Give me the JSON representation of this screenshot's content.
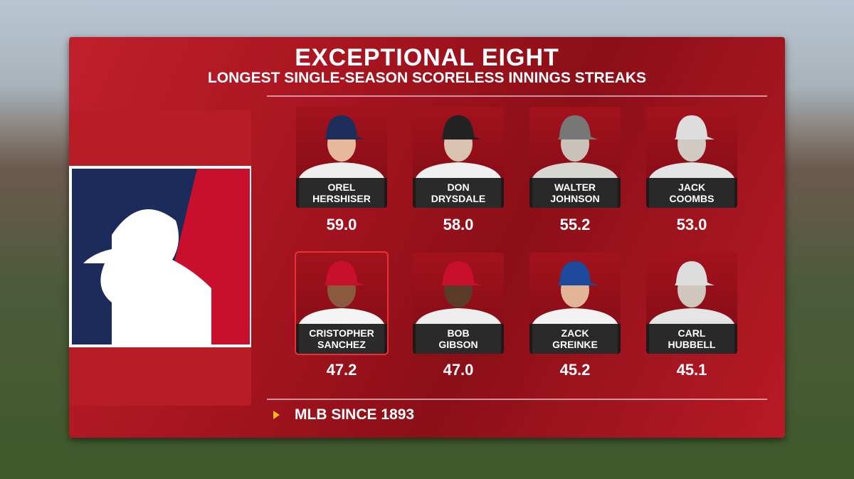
{
  "header": {
    "title": "EXCEPTIONAL EIGHT",
    "subtitle": "LONGEST SINGLE-SEASON SCORELESS INNINGS STREAKS"
  },
  "players": [
    {
      "first": "OREL",
      "last": "HERSHISER",
      "value": "59.0"
    },
    {
      "first": "DON",
      "last": "DRYSDALE",
      "value": "58.0"
    },
    {
      "first": "WALTER",
      "last": "JOHNSON",
      "value": "55.2"
    },
    {
      "first": "JACK",
      "last": "COOMBS",
      "value": "53.0"
    },
    {
      "first": "CRISTOPHER",
      "last": "SANCHEZ",
      "value": "47.2"
    },
    {
      "first": "BOB",
      "last": "GIBSON",
      "value": "47.0"
    },
    {
      "first": "ZACK",
      "last": "GREINKE",
      "value": "45.2"
    },
    {
      "first": "CARL",
      "last": "HUBBELL",
      "value": "45.1"
    }
  ],
  "footer": {
    "note": "MLB SINCE 1893"
  }
}
